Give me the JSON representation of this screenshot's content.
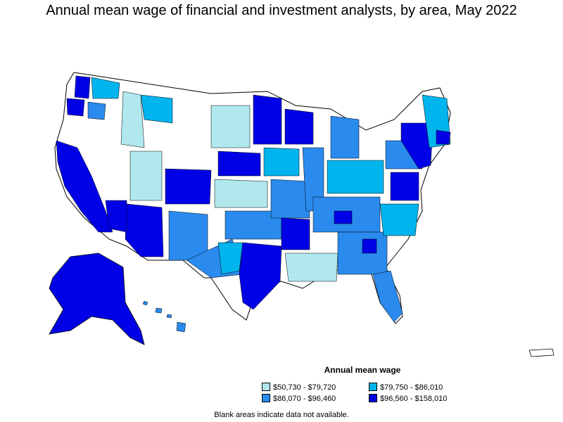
{
  "title": "Annual mean wage of financial and investment analysts, by area, May 2022",
  "legend": {
    "title": "Annual mean wage",
    "items": [
      {
        "label": "$50,730 - $79,720",
        "color": "#b0e8ee"
      },
      {
        "label": "$79,750 - $86,010",
        "color": "#00b4ee"
      },
      {
        "label": "$86,070 - $96,460",
        "color": "#2a8aee"
      },
      {
        "label": "$96,560 - $158,010",
        "color": "#0000e6"
      }
    ]
  },
  "footnote": "Blank areas indicate data not available.",
  "colors": {
    "border": "#000000",
    "no_data": "#ffffff"
  }
}
